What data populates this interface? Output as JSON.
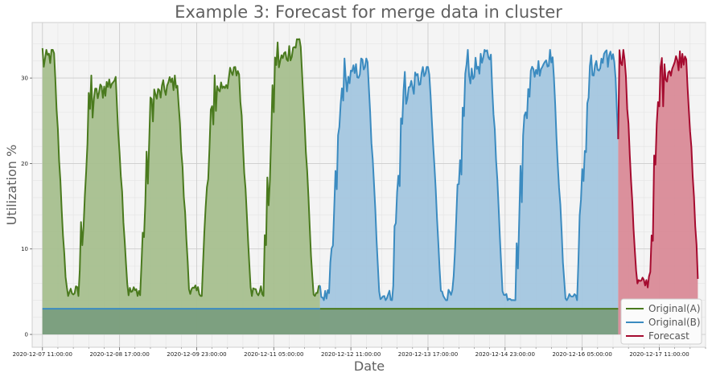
{
  "chart_data": {
    "type": "area",
    "title": "Example 3: Forecast for merge data in cluster",
    "xlabel": "Date",
    "ylabel": "Utilization %",
    "x_tick_labels": [
      "2020-12-07 11:00:00",
      "2020-12-08 17:00:00",
      "2020-12-09 23:00:00",
      "2020-12-11 05:00:00",
      "2020-12-12 11:00:00",
      "2020-12-13 17:00:00",
      "2020-12-14 23:00:00",
      "2020-12-16 05:00:00",
      "2020-12-17 11:00:00"
    ],
    "y_ticks": [
      0,
      10,
      20,
      30
    ],
    "xlim_hours": [
      -4,
      258
    ],
    "ylim": [
      -1.5,
      36.5
    ],
    "grid": true,
    "legend_position": "bottom-right",
    "colors": {
      "original_a": "#4a7a1e",
      "original_a_fill": "#a7bf8e",
      "original_b": "#3b8bc0",
      "original_b_fill": "#a3c6df",
      "forecast": "#a50b2f",
      "forecast_fill": "#d98a97",
      "baseline_fill": "#7a9e7e"
    },
    "series": [
      {
        "name": "Original(A)",
        "x_start_hours": 0,
        "x_end_hours": 108,
        "baseline_value": 3,
        "peaks": [
          {
            "min": 5,
            "max": 33
          },
          {
            "min": 5,
            "max": 30
          },
          {
            "min": 5,
            "max": 30
          },
          {
            "min": 5,
            "max": 31
          },
          {
            "min": 5,
            "max": 34.5
          }
        ],
        "first_value": 33.5
      },
      {
        "name": "Original(B)",
        "x_start_hours": 108,
        "x_end_hours": 224,
        "baseline_value": 3,
        "peaks": [
          {
            "min": 4.5,
            "max": 34.5
          },
          {
            "min": 4.5,
            "max": 32
          },
          {
            "min": 4.5,
            "max": 31
          },
          {
            "min": 4.5,
            "max": 33
          },
          {
            "min": 4.5,
            "max": 33
          }
        ]
      },
      {
        "name": "Forecast",
        "x_start_hours": 224,
        "x_end_hours": 255,
        "peaks": [
          {
            "min": 6,
            "max": 33
          }
        ],
        "last_value": 6.5
      }
    ]
  }
}
